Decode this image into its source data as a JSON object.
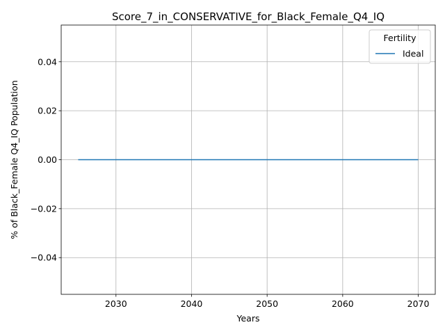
{
  "chart_data": {
    "type": "line",
    "title": "Score_7_in_CONSERVATIVE_for_Black_Female_Q4_IQ",
    "xlabel": "Years",
    "ylabel": "% of Black_Female Q4_IQ Population",
    "xlim": [
      2022.75,
      2072.25
    ],
    "ylim": [
      -0.055,
      0.055
    ],
    "xticks": [
      2030,
      2040,
      2050,
      2060,
      2070
    ],
    "yticks": [
      -0.04,
      -0.02,
      0.0,
      0.02,
      0.04
    ],
    "xtick_labels": [
      "2030",
      "2040",
      "2050",
      "2060",
      "2070"
    ],
    "ytick_labels": [
      "−0.04",
      "−0.02",
      "0.00",
      "0.02",
      "0.04"
    ],
    "grid": true,
    "legend": {
      "title": "Fertility",
      "placement": "top-right"
    },
    "series": [
      {
        "name": "Ideal",
        "color": "#1f77b4",
        "x": [
          2025,
          2030,
          2035,
          2040,
          2045,
          2050,
          2055,
          2060,
          2065,
          2070
        ],
        "y": [
          0,
          0,
          0,
          0,
          0,
          0,
          0,
          0,
          0,
          0
        ]
      }
    ]
  }
}
